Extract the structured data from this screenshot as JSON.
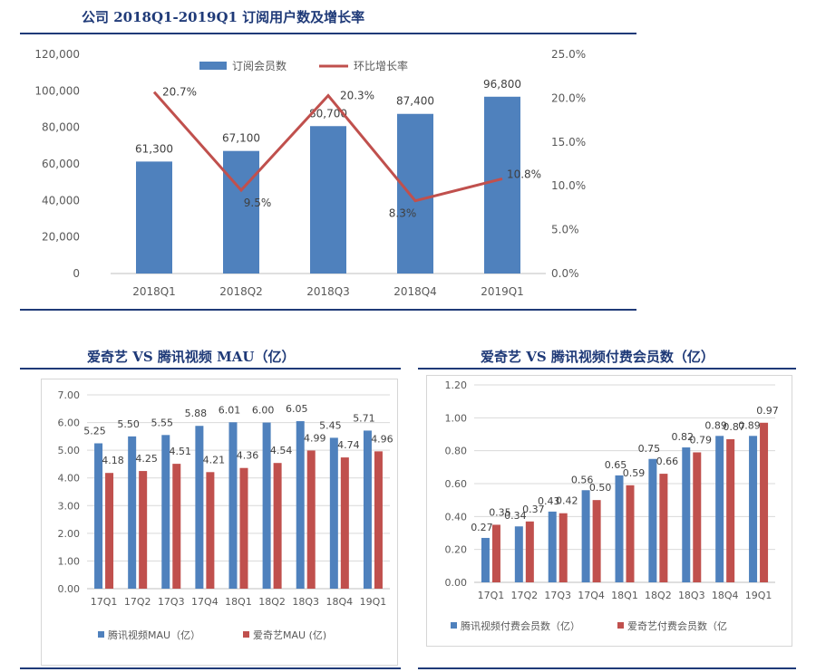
{
  "colors": {
    "blue": "#4f81bd",
    "red": "#c0504d",
    "navy": "#1f3a78",
    "grid": "#d9d9d9",
    "tick": "#595959"
  },
  "panels": {
    "top_title": "公司 2018Q1-2019Q1 订阅用户数及增长率",
    "left_title": "爱奇艺 VS 腾讯视频 MAU（亿）",
    "right_title": "爱奇艺 VS 腾讯视频付费会员数（亿）"
  },
  "chart_data": [
    {
      "type": "bar",
      "categories": [
        "2018Q1",
        "2018Q2",
        "2018Q3",
        "2018Q4",
        "2019Q1"
      ],
      "series": [
        {
          "name": "订阅会员数",
          "type": "bar",
          "axis": "left",
          "values": [
            61300,
            67100,
            80700,
            87400,
            96800
          ],
          "labels": [
            "61,300",
            "67,100",
            "80,700",
            "87,400",
            "96,800"
          ]
        },
        {
          "name": "环比增长率",
          "type": "line",
          "axis": "right",
          "values": [
            20.7,
            9.5,
            20.3,
            8.3,
            10.8
          ],
          "labels": [
            "20.7%",
            "9.5%",
            "20.3%",
            "8.3%",
            "10.8%"
          ]
        }
      ],
      "ylim": [
        0,
        120000
      ],
      "y_ticks": [
        "0",
        "20,000",
        "40,000",
        "60,000",
        "80,000",
        "100,000",
        "120,000"
      ],
      "y2lim": [
        0,
        25
      ],
      "y2_ticks": [
        "0.0%",
        "5.0%",
        "10.0%",
        "15.0%",
        "20.0%",
        "25.0%"
      ],
      "legend": "top-center",
      "grid": false
    },
    {
      "type": "bar",
      "categories": [
        "17Q1",
        "17Q2",
        "17Q3",
        "17Q4",
        "18Q1",
        "18Q2",
        "18Q3",
        "18Q4",
        "19Q1"
      ],
      "series": [
        {
          "name": "腾讯视频MAU（亿）",
          "values": [
            5.25,
            5.5,
            5.55,
            5.88,
            6.01,
            6.0,
            6.05,
            5.45,
            5.71
          ],
          "labels": [
            "5.25",
            "5.50",
            "5.55",
            "5.88",
            "6.01",
            "6.00",
            "6.05",
            "5.45",
            "5.71"
          ]
        },
        {
          "name": "爱奇艺MAU (亿)",
          "values": [
            4.18,
            4.25,
            4.51,
            4.21,
            4.36,
            4.54,
            4.99,
            4.74,
            4.96
          ],
          "labels": [
            "4.18",
            "4.25",
            "4.51",
            "4.21",
            "4.36",
            "4.54",
            "4.99",
            "4.74",
            "4.96"
          ]
        }
      ],
      "ylim": [
        0,
        7
      ],
      "y_ticks": [
        "0.00",
        "1.00",
        "2.00",
        "3.00",
        "4.00",
        "5.00",
        "6.00",
        "7.00"
      ],
      "legend": "bottom",
      "grid": true
    },
    {
      "type": "bar",
      "categories": [
        "17Q1",
        "17Q2",
        "17Q3",
        "17Q4",
        "18Q1",
        "18Q2",
        "18Q3",
        "18Q4",
        "19Q1"
      ],
      "series": [
        {
          "name": "腾讯视频付费会员数（亿）",
          "values": [
            0.27,
            0.34,
            0.43,
            0.56,
            0.65,
            0.75,
            0.82,
            0.89,
            0.89
          ],
          "labels": [
            "0.27",
            "0.34",
            "0.43",
            "0.56",
            "0.65",
            "0.75",
            "0.82",
            "0.89",
            "0.89"
          ]
        },
        {
          "name": "爱奇艺付费会员数（亿",
          "values": [
            0.35,
            0.37,
            0.42,
            0.5,
            0.59,
            0.66,
            0.79,
            0.87,
            0.97
          ],
          "labels": [
            "0.35",
            "0.37",
            "0.42",
            "0.50",
            "0.59",
            "0.66",
            "0.79",
            "0.87",
            "0.97"
          ]
        }
      ],
      "ylim": [
        0,
        1.2
      ],
      "y_ticks": [
        "0.00",
        "0.20",
        "0.40",
        "0.60",
        "0.80",
        "1.00",
        "1.20"
      ],
      "legend": "bottom",
      "grid": true
    }
  ]
}
